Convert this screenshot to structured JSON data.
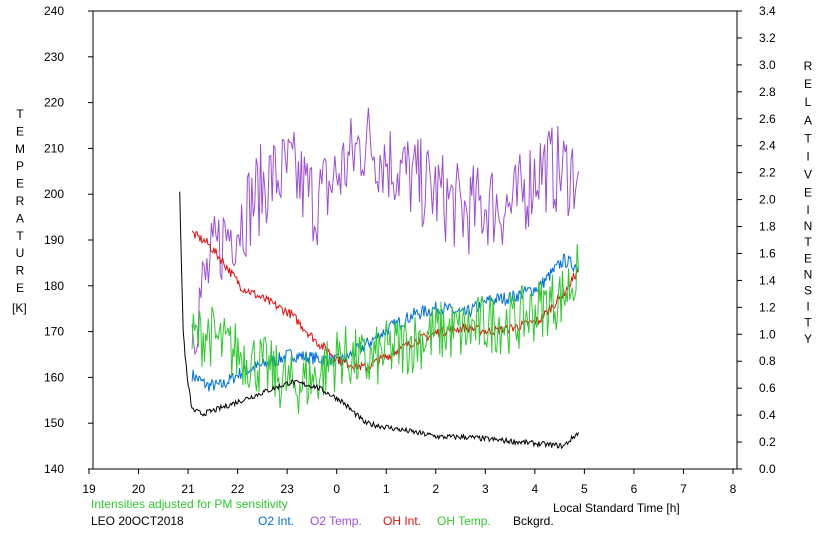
{
  "chart_data": {
    "type": "line",
    "left_axis": {
      "label_letters": [
        "T",
        "E",
        "M",
        "P",
        "E",
        "R",
        "A",
        "T",
        "U",
        "R",
        "E"
      ],
      "unit": "[K]",
      "ylim": [
        140,
        240
      ],
      "ticks": [
        "140",
        "150",
        "160",
        "170",
        "180",
        "190",
        "200",
        "210",
        "220",
        "230",
        "240"
      ]
    },
    "right_axis": {
      "label_word1": [
        "R",
        "E",
        "L",
        "A",
        "T",
        "I",
        "V",
        "E"
      ],
      "label_word2": [
        "I",
        "N",
        "T",
        "E",
        "N",
        "S",
        "I",
        "T",
        "Y"
      ],
      "ylim": [
        0.0,
        3.4
      ],
      "ticks": [
        "0.0",
        "0.2",
        "0.4",
        "0.6",
        "0.8",
        "1.0",
        "1.2",
        "1.4",
        "1.6",
        "1.8",
        "2.0",
        "2.2",
        "2.4",
        "2.6",
        "2.8",
        "3.0",
        "3.2",
        "3.4"
      ]
    },
    "x_axis": {
      "label": "Local Standard Time [h]",
      "ticks": [
        "19",
        "20",
        "21",
        "22",
        "23",
        "0",
        "1",
        "2",
        "3",
        "4",
        "5",
        "6",
        "7",
        "8"
      ]
    },
    "note": "Intensities adjusted for PM sensitivity",
    "station": "LEO 20OCT2018",
    "grid": false,
    "series": [
      {
        "name": "O2 Int.",
        "color": "#0070d8",
        "axis": "right",
        "x": [
          21.0,
          21.3,
          21.6,
          22.0,
          22.5,
          23.0,
          23.5,
          24.0,
          24.5,
          25.0,
          25.5,
          26.0,
          26.5,
          27.0,
          27.5,
          28.0,
          28.5,
          28.8
        ],
        "y": [
          0.7,
          0.62,
          0.62,
          0.72,
          0.78,
          0.85,
          0.82,
          0.8,
          0.92,
          1.05,
          1.15,
          1.2,
          1.15,
          1.25,
          1.28,
          1.35,
          1.55,
          1.5
        ]
      },
      {
        "name": "O2 Temp.",
        "color": "#9b4fd0",
        "axis": "left",
        "x": [
          21.0,
          21.3,
          21.6,
          22.0,
          22.5,
          23.0,
          23.5,
          24.0,
          24.5,
          25.0,
          25.5,
          26.0,
          26.5,
          27.0,
          27.5,
          28.0,
          28.5,
          28.8
        ],
        "y": [
          172,
          182,
          190,
          195,
          203,
          205,
          198,
          205,
          212,
          207,
          203,
          200,
          196,
          198,
          197,
          206,
          205,
          205
        ]
      },
      {
        "name": "OH Int.",
        "color": "#e01010",
        "axis": "right",
        "x": [
          21.0,
          21.3,
          21.6,
          22.0,
          22.5,
          23.0,
          23.5,
          24.0,
          24.5,
          25.0,
          25.5,
          26.0,
          26.5,
          27.0,
          27.5,
          28.0,
          28.5,
          28.8
        ],
        "y": [
          1.75,
          1.68,
          1.55,
          1.35,
          1.25,
          1.15,
          0.95,
          0.8,
          0.75,
          0.85,
          0.95,
          1.02,
          1.05,
          1.02,
          1.05,
          1.1,
          1.3,
          1.48
        ]
      },
      {
        "name": "OH Temp.",
        "color": "#30c830",
        "axis": "left",
        "x": [
          21.0,
          21.3,
          21.6,
          22.0,
          22.5,
          23.0,
          23.5,
          24.0,
          24.5,
          25.0,
          25.5,
          26.0,
          26.5,
          27.0,
          27.5,
          28.0,
          28.5,
          28.8
        ],
        "y": [
          168,
          170,
          167,
          165,
          162,
          158,
          160,
          165,
          163,
          166,
          168,
          170,
          170,
          172,
          172,
          175,
          178,
          183
        ]
      },
      {
        "name": "Bckgrd.",
        "color": "#000000",
        "axis": "left",
        "x": [
          20.75,
          20.82,
          20.9,
          21.0,
          21.2,
          21.5,
          22.0,
          22.5,
          23.0,
          23.5,
          24.0,
          24.5,
          25.0,
          25.5,
          26.0,
          26.5,
          27.0,
          27.5,
          28.0,
          28.5,
          28.8
        ],
        "y": [
          200,
          170,
          160,
          153,
          152,
          153,
          155,
          157,
          159,
          158,
          155,
          150,
          149,
          148,
          147,
          147,
          146.5,
          146,
          145.5,
          145,
          148
        ]
      }
    ]
  }
}
